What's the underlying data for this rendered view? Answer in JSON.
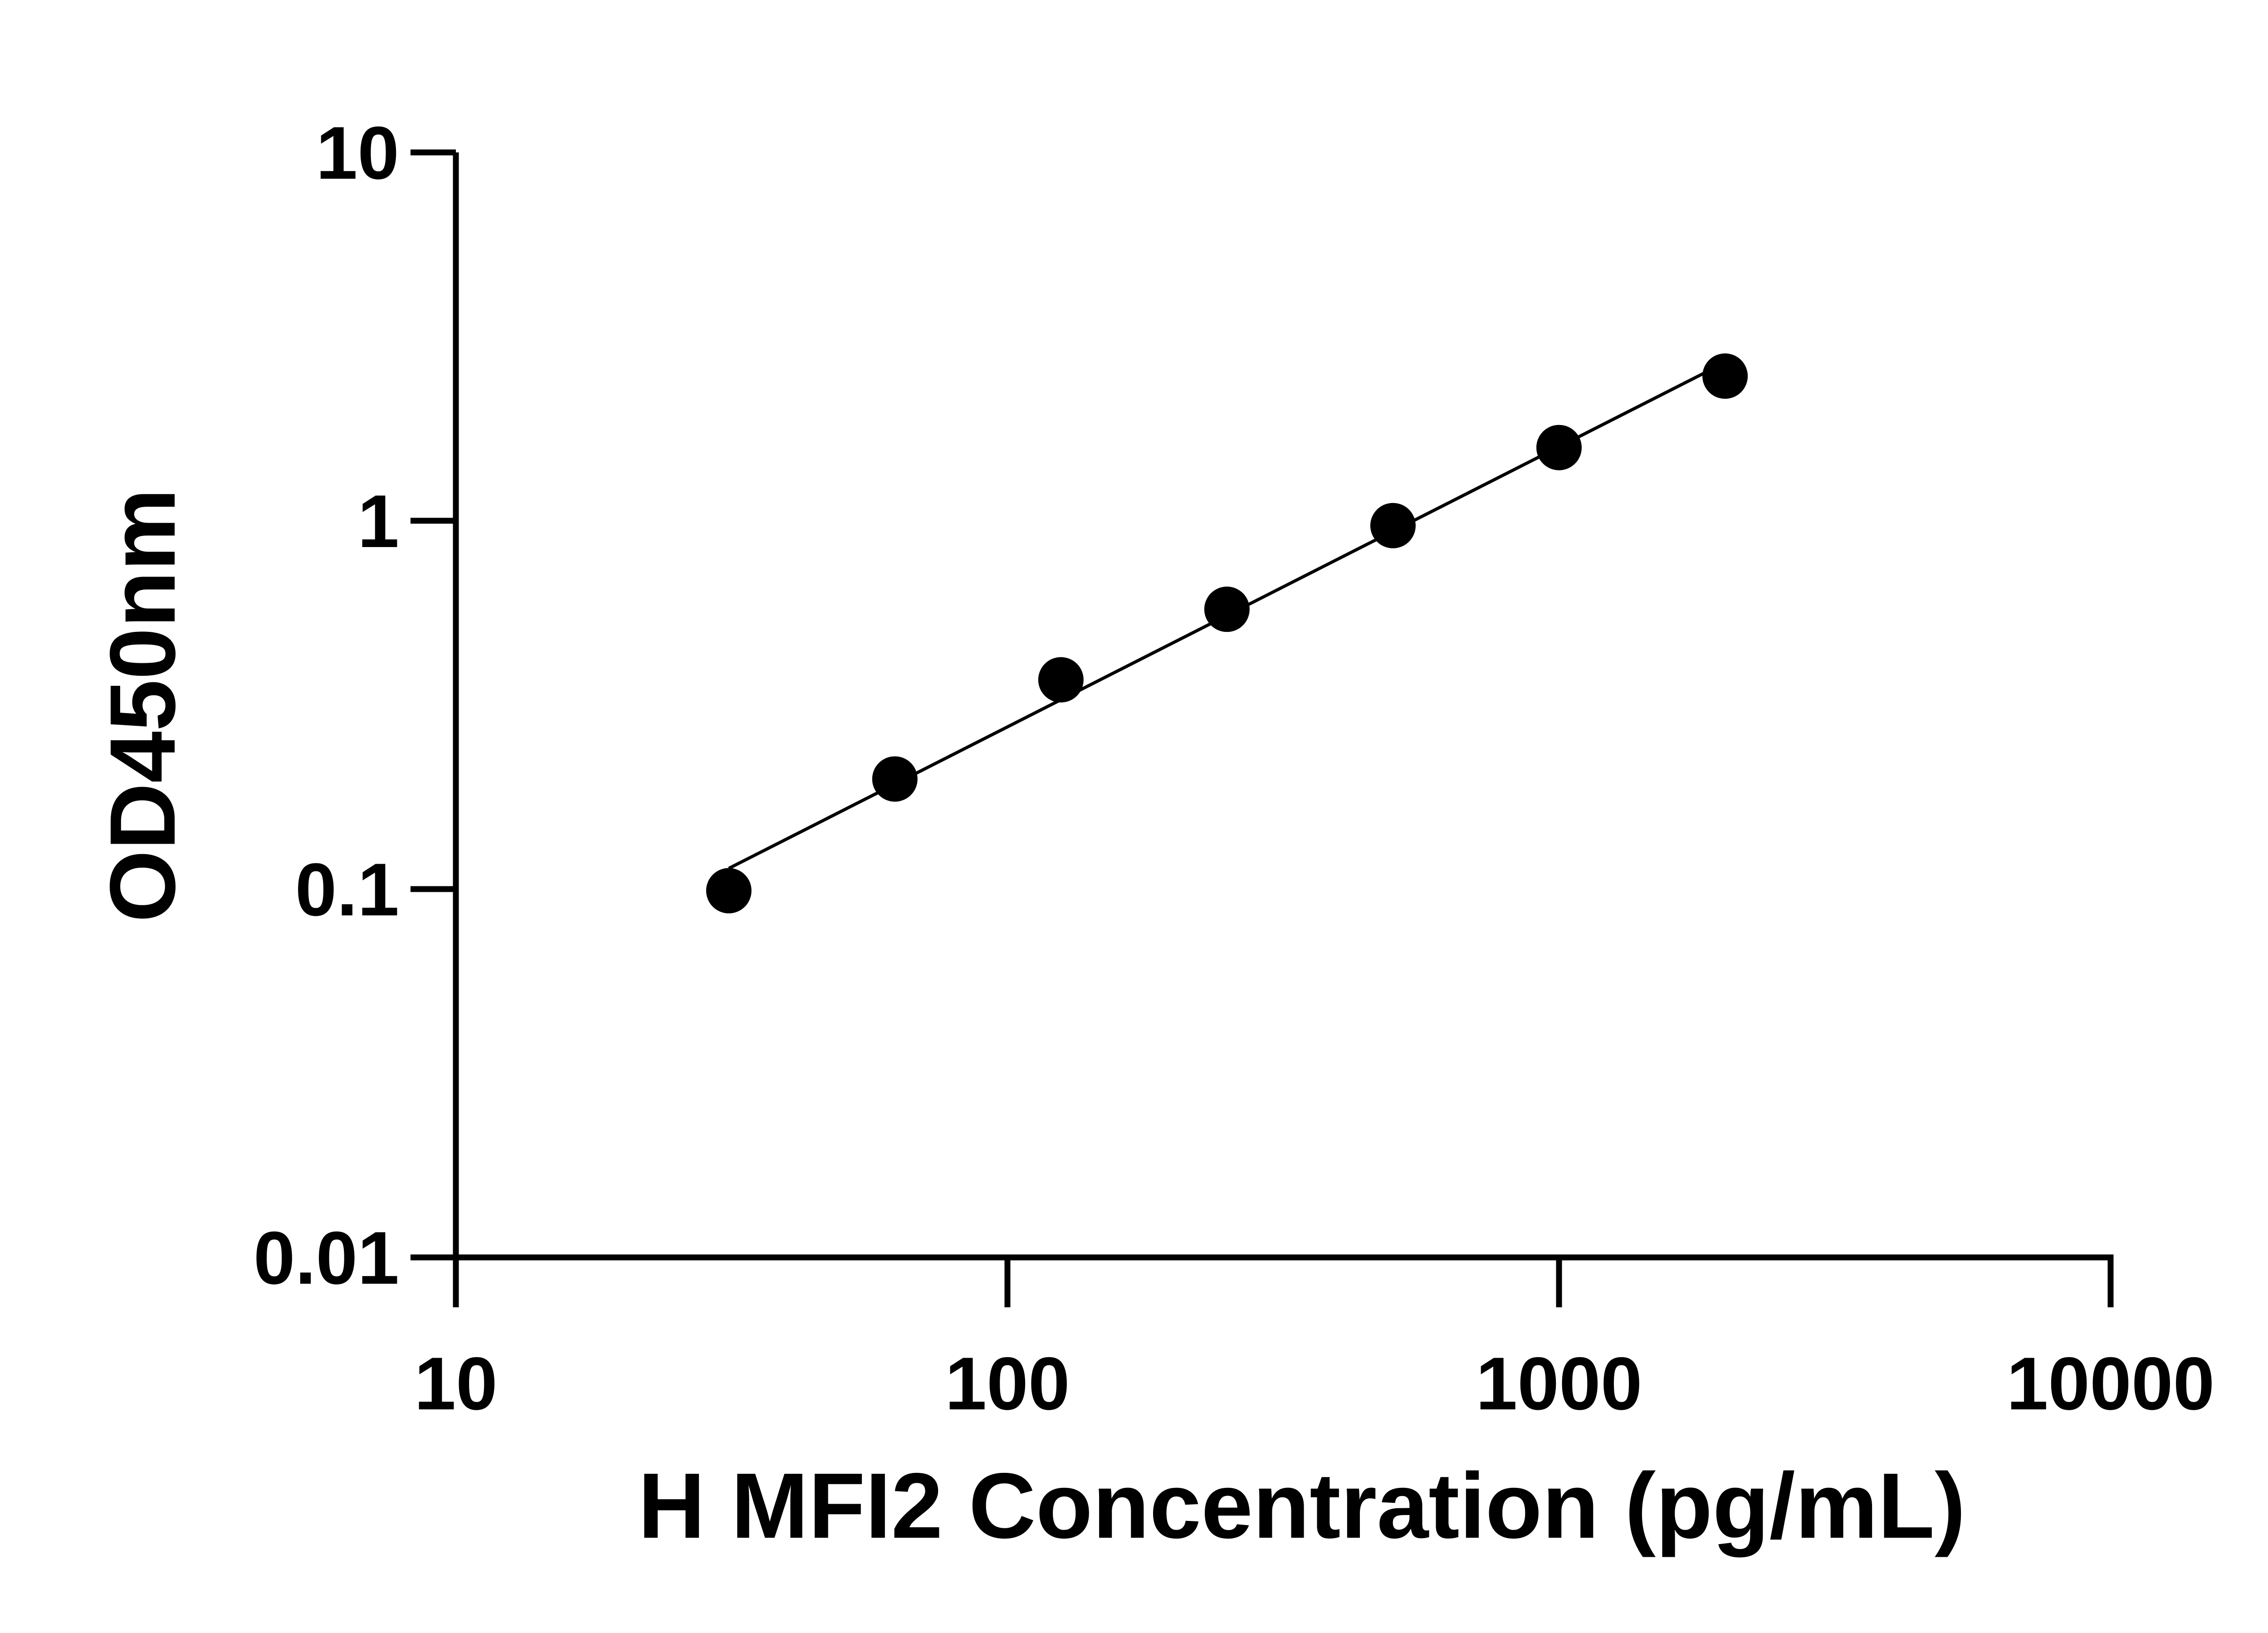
{
  "chart_data": {
    "type": "scatter",
    "title": "",
    "xlabel": "H MFI2 Concentration (pg/mL)",
    "ylabel": "OD450nm",
    "x_scale": "log",
    "y_scale": "log",
    "xlim": [
      10,
      10000
    ],
    "ylim": [
      0.01,
      10
    ],
    "x_ticks": [
      "10",
      "100",
      "1000",
      "10000"
    ],
    "y_ticks": [
      "0.01",
      "0.1",
      "1",
      "10"
    ],
    "grid": false,
    "legend": "none",
    "marker_color": "#000000",
    "fit_line": "log-log linear fit",
    "series": [
      {
        "x": [
          31.25,
          62.5,
          125,
          250,
          500,
          1000,
          2000
        ],
        "y": [
          0.099,
          0.199,
          0.37,
          0.575,
          0.97,
          1.58,
          2.47
        ]
      }
    ]
  }
}
